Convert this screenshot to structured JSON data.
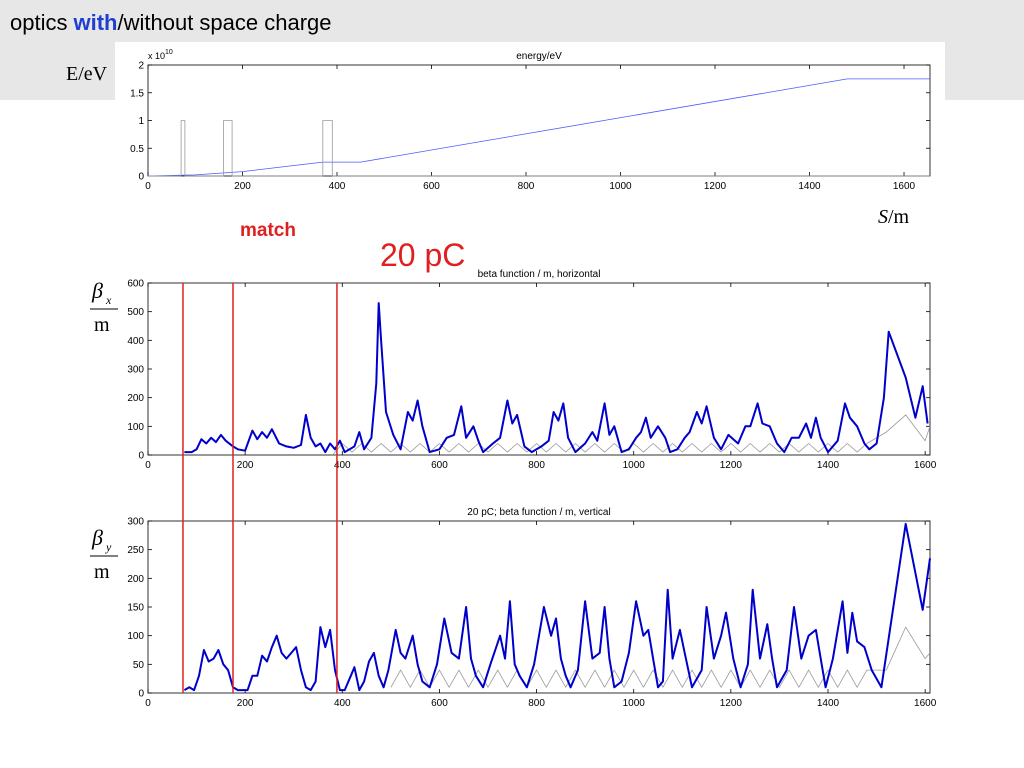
{
  "slide": {
    "title": [
      "optics",
      "with",
      "/without space charge"
    ],
    "energy_label": "E/eV",
    "s_symbol": "S",
    "s_unit": "/m",
    "bx": {
      "symbol": "β",
      "subscript": "x",
      "unit": "m"
    },
    "by": {
      "symbol": "β",
      "subscript": "y",
      "unit": "m"
    },
    "charge_label": "20 pC",
    "match_label": "match",
    "match_lines": {
      "x": [
        72,
        175,
        389
      ],
      "color": "#e02020"
    }
  },
  "chart_data": [
    {
      "type": "line",
      "title": "energy/eV",
      "y_multiplier": "x 10",
      "y_multiplier_exponent": "10",
      "xlim": [
        0,
        1655
      ],
      "xticks": [
        0,
        200,
        400,
        600,
        800,
        1000,
        1200,
        1400,
        1600
      ],
      "ylim": [
        0,
        2
      ],
      "yticks": [
        0,
        0.5,
        1,
        1.5,
        2
      ],
      "series": [
        {
          "color": "#4a5cff",
          "x": [
            0,
            100,
            200,
            300,
            370,
            450,
            1480,
            1655
          ],
          "values": [
            0,
            0.02,
            0.08,
            0.18,
            0.25,
            0.25,
            1.75,
            1.75
          ]
        },
        {
          "color": "#999999",
          "x": [
            0,
            70,
            70,
            78,
            78,
            160,
            160,
            178,
            178,
            370,
            370,
            390,
            390,
            1655
          ],
          "values": [
            0,
            0,
            1,
            1,
            0,
            0,
            1,
            1,
            0,
            0,
            1,
            1,
            0,
            0
          ]
        }
      ]
    },
    {
      "type": "line",
      "title": "beta function / m, horizontal",
      "xlim": [
        0,
        1610
      ],
      "xticks": [
        0,
        200,
        400,
        600,
        800,
        1000,
        1200,
        1400,
        1600
      ],
      "ylim": [
        0,
        600
      ],
      "yticks": [
        0,
        100,
        200,
        300,
        400,
        500,
        600
      ],
      "series": [
        {
          "color": "#999999",
          "width": 0.8,
          "x": [
            380,
            400,
            420,
            440,
            460,
            480,
            500,
            520,
            540,
            560,
            580,
            600,
            620,
            640,
            660,
            680,
            700,
            720,
            740,
            760,
            780,
            800,
            820,
            840,
            860,
            880,
            900,
            920,
            940,
            960,
            980,
            1000,
            1020,
            1040,
            1060,
            1080,
            1100,
            1120,
            1140,
            1160,
            1180,
            1200,
            1220,
            1240,
            1260,
            1280,
            1300,
            1320,
            1340,
            1360,
            1380,
            1400,
            1420,
            1440,
            1460,
            1480,
            1520,
            1560,
            1600,
            1610
          ],
          "values": [
            0,
            40,
            10,
            40,
            10,
            40,
            10,
            40,
            10,
            40,
            10,
            40,
            10,
            40,
            10,
            40,
            10,
            40,
            10,
            40,
            10,
            40,
            10,
            40,
            10,
            40,
            10,
            40,
            10,
            40,
            10,
            40,
            10,
            40,
            10,
            40,
            10,
            40,
            10,
            40,
            10,
            40,
            10,
            40,
            10,
            40,
            10,
            40,
            10,
            40,
            10,
            40,
            10,
            40,
            10,
            40,
            80,
            140,
            50,
            100
          ]
        },
        {
          "color": "#0000cc",
          "width": 2,
          "x": [
            75,
            90,
            100,
            110,
            120,
            130,
            140,
            150,
            160,
            175,
            185,
            200,
            215,
            225,
            235,
            245,
            255,
            270,
            285,
            300,
            315,
            325,
            335,
            345,
            355,
            365,
            375,
            385,
            395,
            405,
            415,
            425,
            435,
            445,
            460,
            470,
            475,
            480,
            490,
            505,
            520,
            535,
            545,
            555,
            565,
            580,
            600,
            615,
            630,
            645,
            655,
            670,
            680,
            690,
            710,
            725,
            740,
            750,
            760,
            775,
            790,
            810,
            825,
            835,
            845,
            855,
            865,
            880,
            900,
            915,
            925,
            940,
            950,
            960,
            975,
            990,
            1005,
            1015,
            1025,
            1035,
            1050,
            1065,
            1075,
            1090,
            1105,
            1115,
            1130,
            1140,
            1150,
            1165,
            1180,
            1195,
            1215,
            1230,
            1240,
            1255,
            1265,
            1280,
            1295,
            1310,
            1325,
            1340,
            1355,
            1365,
            1375,
            1385,
            1400,
            1420,
            1435,
            1445,
            1460,
            1475,
            1485,
            1500,
            1515,
            1525,
            1560,
            1580,
            1595,
            1605
          ],
          "values": [
            10,
            10,
            20,
            55,
            40,
            60,
            45,
            70,
            50,
            30,
            20,
            15,
            85,
            55,
            80,
            60,
            90,
            40,
            30,
            25,
            35,
            140,
            60,
            30,
            40,
            10,
            40,
            20,
            50,
            10,
            20,
            30,
            80,
            20,
            60,
            250,
            530,
            400,
            150,
            70,
            20,
            150,
            120,
            190,
            100,
            10,
            20,
            60,
            70,
            170,
            60,
            100,
            50,
            10,
            40,
            60,
            190,
            110,
            140,
            30,
            10,
            30,
            50,
            150,
            120,
            180,
            60,
            10,
            40,
            80,
            50,
            180,
            70,
            100,
            10,
            20,
            60,
            80,
            130,
            60,
            100,
            60,
            10,
            20,
            60,
            80,
            150,
            110,
            170,
            60,
            20,
            70,
            40,
            100,
            100,
            180,
            110,
            100,
            40,
            10,
            60,
            60,
            110,
            60,
            130,
            60,
            10,
            50,
            180,
            130,
            100,
            40,
            20,
            40,
            200,
            430,
            270,
            130,
            240,
            110
          ]
        }
      ]
    },
    {
      "type": "line",
      "title": "20 pC; beta function / m, vertical",
      "xlim": [
        0,
        1610
      ],
      "xticks": [
        0,
        200,
        400,
        600,
        800,
        1000,
        1200,
        1400,
        1600
      ],
      "ylim": [
        0,
        300
      ],
      "yticks": [
        0,
        50,
        100,
        150,
        200,
        250,
        300
      ],
      "series": [
        {
          "color": "#999999",
          "width": 0.8,
          "x": [
            500,
            520,
            540,
            560,
            580,
            600,
            620,
            640,
            660,
            680,
            700,
            720,
            740,
            760,
            780,
            800,
            820,
            840,
            860,
            880,
            900,
            920,
            940,
            960,
            980,
            1000,
            1020,
            1040,
            1060,
            1080,
            1100,
            1120,
            1140,
            1160,
            1180,
            1200,
            1220,
            1240,
            1260,
            1280,
            1300,
            1320,
            1340,
            1360,
            1380,
            1400,
            1420,
            1440,
            1460,
            1480,
            1520,
            1560,
            1600,
            1610
          ],
          "values": [
            10,
            40,
            10,
            40,
            10,
            40,
            10,
            40,
            10,
            40,
            10,
            40,
            10,
            40,
            10,
            40,
            10,
            40,
            10,
            40,
            10,
            40,
            10,
            40,
            10,
            40,
            10,
            40,
            10,
            40,
            10,
            40,
            10,
            40,
            10,
            40,
            10,
            40,
            10,
            40,
            10,
            40,
            10,
            40,
            10,
            40,
            10,
            40,
            10,
            40,
            40,
            115,
            60,
            70
          ]
        },
        {
          "color": "#0000cc",
          "width": 2,
          "x": [
            75,
            85,
            95,
            105,
            115,
            125,
            135,
            145,
            155,
            165,
            175,
            185,
            195,
            205,
            215,
            225,
            235,
            245,
            255,
            265,
            275,
            285,
            295,
            305,
            315,
            325,
            335,
            345,
            355,
            365,
            375,
            385,
            395,
            405,
            415,
            425,
            435,
            445,
            455,
            465,
            475,
            485,
            495,
            510,
            520,
            530,
            545,
            555,
            565,
            580,
            595,
            610,
            625,
            640,
            655,
            665,
            675,
            690,
            705,
            725,
            735,
            745,
            755,
            765,
            780,
            795,
            815,
            830,
            840,
            850,
            860,
            870,
            885,
            900,
            915,
            930,
            940,
            950,
            960,
            975,
            990,
            1005,
            1020,
            1030,
            1040,
            1050,
            1060,
            1070,
            1080,
            1095,
            1105,
            1120,
            1140,
            1150,
            1165,
            1180,
            1190,
            1205,
            1220,
            1235,
            1245,
            1260,
            1275,
            1285,
            1295,
            1315,
            1330,
            1345,
            1360,
            1375,
            1385,
            1395,
            1410,
            1430,
            1440,
            1450,
            1460,
            1475,
            1490,
            1510,
            1560,
            1595,
            1610
          ],
          "values": [
            5,
            10,
            5,
            30,
            75,
            55,
            60,
            75,
            50,
            40,
            10,
            5,
            5,
            5,
            30,
            30,
            65,
            55,
            80,
            100,
            70,
            60,
            70,
            80,
            40,
            10,
            5,
            20,
            115,
            80,
            110,
            40,
            5,
            5,
            25,
            45,
            5,
            20,
            55,
            70,
            30,
            10,
            40,
            110,
            70,
            60,
            100,
            50,
            20,
            10,
            50,
            130,
            70,
            60,
            150,
            60,
            30,
            10,
            50,
            100,
            60,
            160,
            50,
            30,
            10,
            50,
            150,
            100,
            130,
            60,
            30,
            10,
            40,
            160,
            60,
            70,
            150,
            60,
            10,
            20,
            70,
            160,
            100,
            110,
            60,
            10,
            20,
            180,
            60,
            110,
            70,
            10,
            40,
            150,
            60,
            100,
            140,
            60,
            10,
            50,
            180,
            60,
            120,
            60,
            10,
            40,
            150,
            60,
            100,
            110,
            60,
            10,
            60,
            160,
            70,
            140,
            90,
            80,
            40,
            10,
            295,
            145,
            235
          ]
        }
      ]
    }
  ]
}
